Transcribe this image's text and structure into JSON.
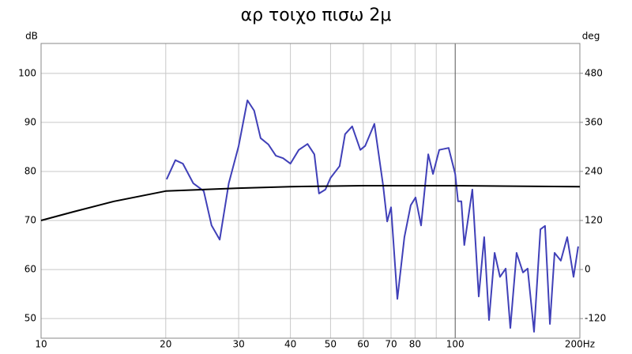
{
  "chart_data": {
    "type": "line",
    "title": "αρ τοιχο πισω 2μ",
    "y_unit": "dB",
    "y2_unit": "deg",
    "xscale": "log",
    "xlim": [
      10,
      200
    ],
    "xticks": [
      10,
      20,
      30,
      40,
      50,
      60,
      70,
      80,
      100,
      {
        "value": 200,
        "label": "200Hz"
      }
    ],
    "xgrid_minor": [
      90
    ],
    "ylim": [
      46,
      106.1
    ],
    "yticks": [
      50,
      60,
      70,
      80,
      90,
      100
    ],
    "y2lim": [
      -168,
      553
    ],
    "y2ticks": [
      -120,
      0,
      120,
      240,
      360,
      480
    ],
    "grid": true,
    "series": [
      {
        "color": "#4040b8",
        "x": [
          20.1,
          21.1,
          22.0,
          23.3,
          24.7,
          25.8,
          27.0,
          28.4,
          30.0,
          31.5,
          32.7,
          33.9,
          35.4,
          36.9,
          38.4,
          40.0,
          41.9,
          44.0,
          45.7,
          46.9,
          48.6,
          50.0,
          52.6,
          54.2,
          56.4,
          59.0,
          60.6,
          63.8,
          67.0,
          68.5,
          70.0,
          72.5,
          75.4,
          78.1,
          80.2,
          82.7,
          86.1,
          88.4,
          91.5,
          96.4,
          100.0,
          101.6,
          103.5,
          105.2,
          110.0,
          114.0,
          117.5,
          120.7,
          124.5,
          128.3,
          132.4,
          135.9,
          140.7,
          145.8,
          149.6,
          155.0,
          160.6,
          164.8,
          169.3,
          173.8,
          179.9,
          186.4,
          193.1,
          198.2
        ],
        "values": [
          78.4,
          82.3,
          81.6,
          77.6,
          76.0,
          69.0,
          66.1,
          77.6,
          85.2,
          94.5,
          92.4,
          86.8,
          85.5,
          83.2,
          82.7,
          81.6,
          84.4,
          85.6,
          83.5,
          75.5,
          76.3,
          78.7,
          81.1,
          87.6,
          89.2,
          84.4,
          85.2,
          89.7,
          77.1,
          69.8,
          72.7,
          54.0,
          66.6,
          73.1,
          74.7,
          69.0,
          83.5,
          79.5,
          84.4,
          84.8,
          79.5,
          73.9,
          73.9,
          65.0,
          76.3,
          54.5,
          66.6,
          49.7,
          63.4,
          58.5,
          60.2,
          48.1,
          63.4,
          59.4,
          60.2,
          47.3,
          68.2,
          68.9,
          48.9,
          63.4,
          61.8,
          66.6,
          58.5,
          64.7
        ]
      },
      {
        "color": "#000000",
        "x": [
          10,
          12,
          15,
          20,
          30,
          40,
          60,
          100,
          200
        ],
        "values": [
          70.0,
          71.8,
          73.9,
          76.0,
          76.6,
          76.9,
          77.1,
          77.1,
          76.9
        ]
      }
    ]
  }
}
